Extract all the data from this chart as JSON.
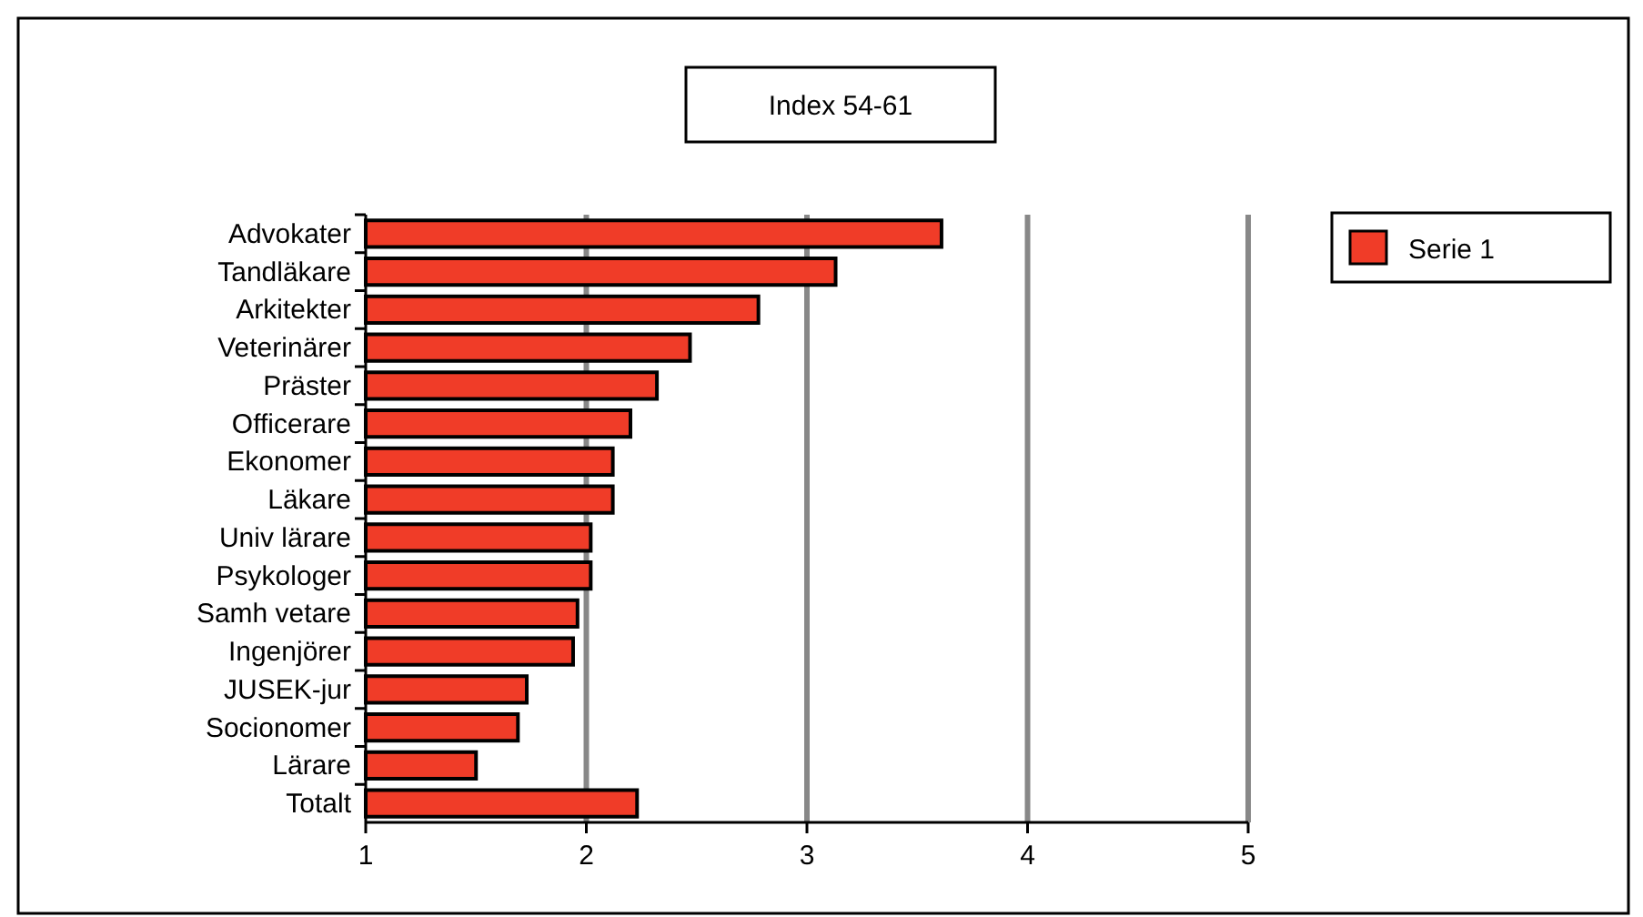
{
  "chart_data": {
    "type": "bar",
    "orientation": "horizontal",
    "title": "Index 54-61",
    "categories": [
      "Advokater",
      "Tandläkare",
      "Arkitekter",
      "Veterinärer",
      "Präster",
      "Officerare",
      "Ekonomer",
      "Läkare",
      "Univ lärare",
      "Psykologer",
      "Samh vetare",
      "Ingenjörer",
      "JUSEK-jur",
      "Socionomer",
      "Lärare",
      "Totalt"
    ],
    "series": [
      {
        "name": "Serie 1",
        "color": "#f03c28",
        "values": [
          3.61,
          3.13,
          2.78,
          2.47,
          2.32,
          2.2,
          2.12,
          2.12,
          2.02,
          2.02,
          1.96,
          1.94,
          1.73,
          1.69,
          1.5,
          2.23
        ]
      }
    ],
    "xlim": [
      1,
      5
    ],
    "xticks": [
      1,
      2,
      3,
      4,
      5
    ],
    "grid": "x",
    "legend": "top right"
  }
}
